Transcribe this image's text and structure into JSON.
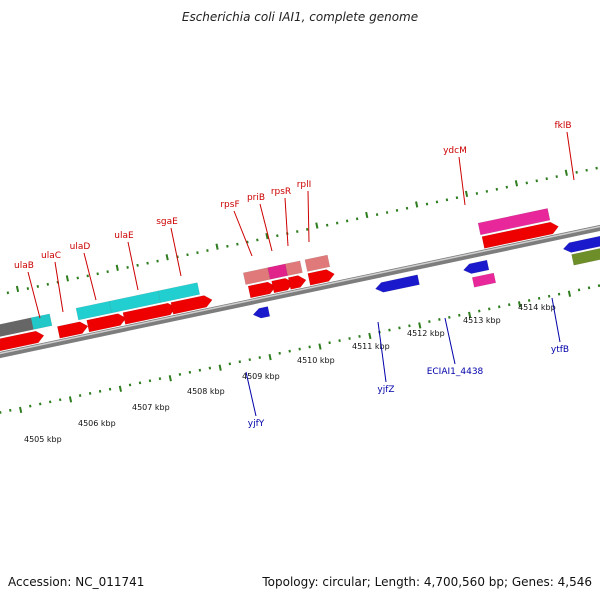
{
  "title": "Escherichia coli IAI1, complete genome",
  "footer": {
    "accession": "Accession: NC_011741",
    "topology": "Topology: circular; Length: 4,700,560 bp; Genes: 4,546"
  },
  "colors": {
    "forward_label": "#cc0000",
    "reverse_label": "#0000aa",
    "tick": "#2e7d1e",
    "backbone": "#9a9a9a",
    "cds": "#ee0000",
    "reverse_gene": "#1a1acc"
  },
  "scale_labels": [
    "4505 kbp",
    "4506 kbp",
    "4507 kbp",
    "4508 kbp",
    "4509 kbp",
    "4510 kbp",
    "4511 kbp",
    "4512 kbp",
    "4513 kbp",
    "4514 kbp"
  ],
  "forward_genes": [
    {
      "name": "ulaB"
    },
    {
      "name": "ulaC"
    },
    {
      "name": "ulaD"
    },
    {
      "name": "ulaE"
    },
    {
      "name": "sgaE"
    },
    {
      "name": "rpsF"
    },
    {
      "name": "priB"
    },
    {
      "name": "rpsR"
    },
    {
      "name": "rplI"
    },
    {
      "name": "ydcM"
    },
    {
      "name": "fklB"
    }
  ],
  "reverse_genes": [
    {
      "name": "yjfY"
    },
    {
      "name": "yjfZ"
    },
    {
      "name": "ECIAI1_4438"
    },
    {
      "name": "ytfB"
    }
  ]
}
